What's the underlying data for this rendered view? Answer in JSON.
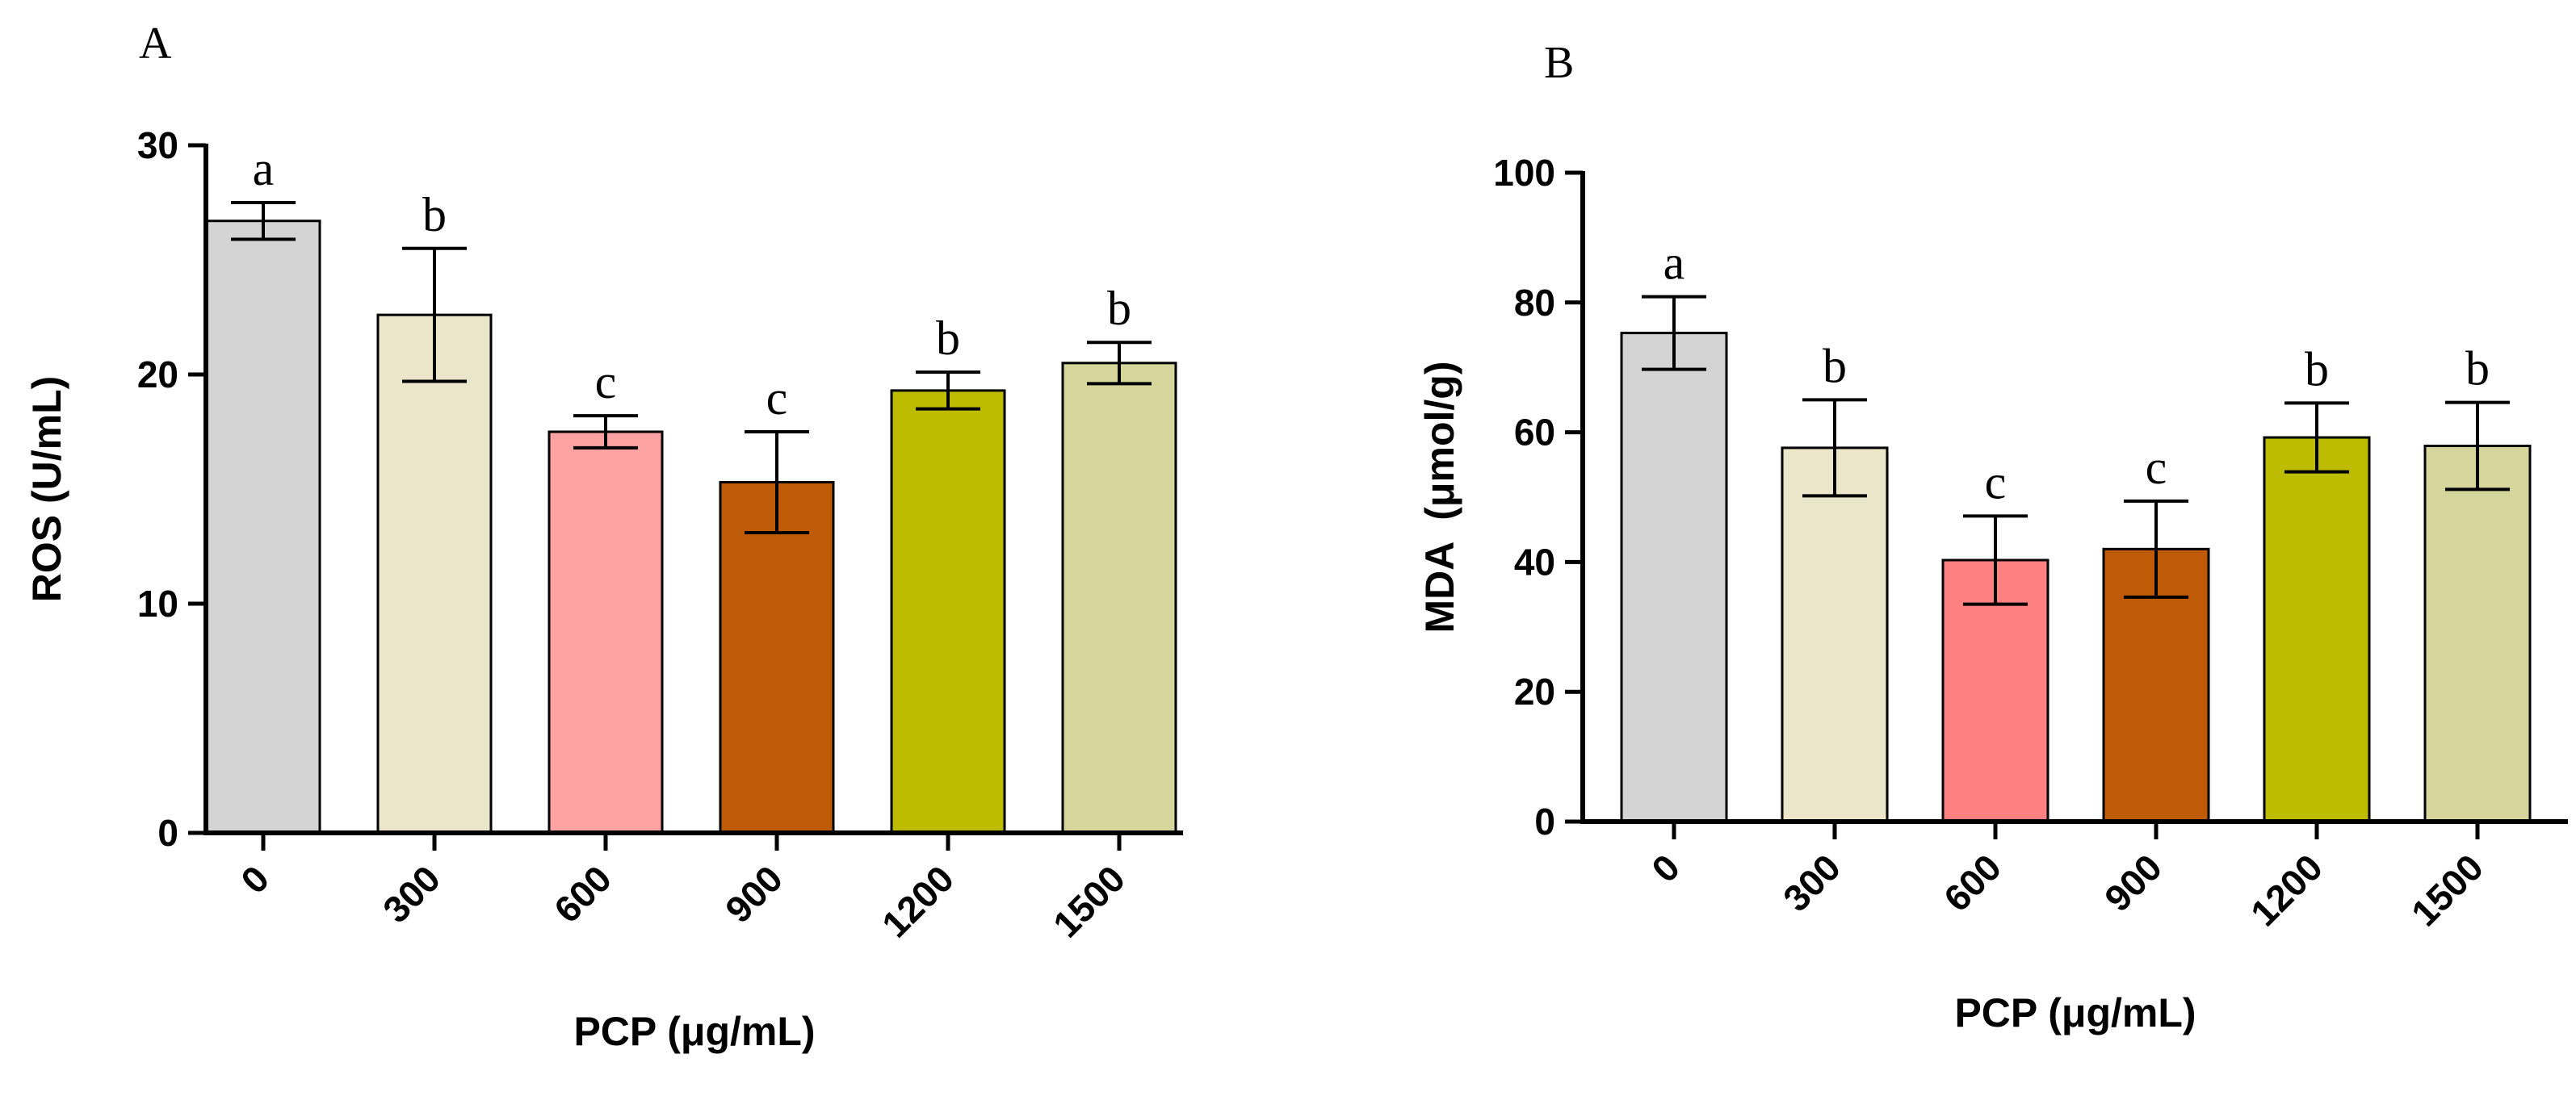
{
  "chart_data": [
    {
      "panel": "A",
      "type": "bar",
      "categories": [
        "0",
        "300",
        "600",
        "900",
        "1200",
        "1500"
      ],
      "values": [
        26.7,
        22.6,
        17.5,
        15.3,
        19.3,
        20.5
      ],
      "errors": [
        0.8,
        2.9,
        0.7,
        2.2,
        0.8,
        0.9
      ],
      "significance": [
        "a",
        "b",
        "c",
        "c",
        "b",
        "b"
      ],
      "colors": [
        "#d4d4d4",
        "#ebe6c9",
        "#ffa2a2",
        "#bf5b07",
        "#bdbc00",
        "#d6d69c"
      ],
      "xlabel": "PCP (μg/mL)",
      "ylabel": "ROS (U/mL)",
      "ylim": [
        0,
        30
      ],
      "yticks": [
        0,
        10,
        20,
        30
      ]
    },
    {
      "panel": "B",
      "type": "bar",
      "categories": [
        "0",
        "300",
        "600",
        "900",
        "1200",
        "1500"
      ],
      "values": [
        75.3,
        57.6,
        40.3,
        42.0,
        59.2,
        57.9
      ],
      "errors": [
        5.6,
        7.4,
        6.8,
        7.4,
        5.3,
        6.7
      ],
      "significance": [
        "a",
        "b",
        "c",
        "c",
        "b",
        "b"
      ],
      "colors": [
        "#d4d4d4",
        "#ebe6c9",
        "#ff8080",
        "#bf5b07",
        "#bdbc00",
        "#d6d69c"
      ],
      "xlabel": "PCP (μg/mL)",
      "ylabel": "MDA  (μmol/g)",
      "ylim": [
        0,
        100
      ],
      "yticks": [
        0,
        20,
        40,
        60,
        80,
        100
      ]
    }
  ]
}
